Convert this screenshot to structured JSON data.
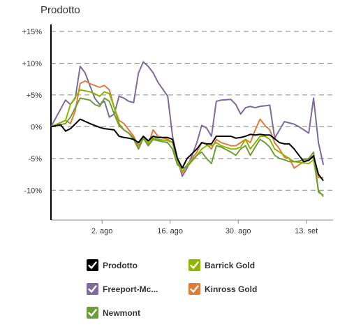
{
  "title": "Prodotto",
  "legend": [
    {
      "label": "Prodotto",
      "color": "#000000"
    },
    {
      "label": "Barrick Gold",
      "color": "#8db600"
    },
    {
      "label": "Freeport-Mc...",
      "color": "#7c6b9c"
    },
    {
      "label": "Kinross Gold",
      "color": "#e07b39"
    },
    {
      "label": "Newmont",
      "color": "#6e9c3a"
    }
  ],
  "chart_data": {
    "type": "line",
    "title": "Prodotto",
    "xlabel": "",
    "ylabel": "",
    "x_tick_labels": [
      "2. ago",
      "16. ago",
      "30. ago",
      "13. set"
    ],
    "y_tick_labels": [
      "+15%",
      "+10%",
      "+5%",
      "0%",
      "-5%",
      "-10%"
    ],
    "y_ticks": [
      15,
      10,
      5,
      0,
      -5,
      -10
    ],
    "ylim": [
      -14.7,
      15
    ],
    "x_range": [
      0,
      58
    ],
    "x_tick_positions": [
      10.5,
      24.5,
      38.5,
      52.5
    ],
    "grid": true,
    "series": [
      {
        "name": "Prodotto",
        "color": "#000000",
        "values": [
          [
            0,
            0
          ],
          [
            2,
            0.3
          ],
          [
            3,
            -0.7
          ],
          [
            4,
            -0.3
          ],
          [
            6,
            1.2
          ],
          [
            8,
            0.5
          ],
          [
            10,
            -0.1
          ],
          [
            11,
            -0.3
          ],
          [
            12,
            -0.4
          ],
          [
            13,
            -0.5
          ],
          [
            14,
            -1.5
          ],
          [
            15,
            -1.7
          ],
          [
            16,
            -1.8
          ],
          [
            17,
            -2.0
          ],
          [
            18,
            -2.5
          ],
          [
            19,
            -1.5
          ],
          [
            20,
            -2.2
          ],
          [
            21,
            -1.5
          ],
          [
            22,
            -1.7
          ],
          [
            24,
            -1.7
          ],
          [
            25,
            -2.0
          ],
          [
            26,
            -5.0
          ],
          [
            27,
            -6.5
          ],
          [
            28,
            -5.0
          ],
          [
            30,
            -3.5
          ],
          [
            31,
            -2.5
          ],
          [
            32,
            -2.7
          ],
          [
            33,
            -2.7
          ],
          [
            34,
            -1.5
          ],
          [
            35,
            -1.5
          ],
          [
            37,
            -1.5
          ],
          [
            38,
            -1.8
          ],
          [
            39,
            -1.7
          ],
          [
            40,
            -1.5
          ],
          [
            41,
            -1.2
          ],
          [
            42,
            -1.3
          ],
          [
            43,
            -1.2
          ],
          [
            44,
            -1.3
          ],
          [
            45,
            -1.3
          ],
          [
            46,
            -1.9
          ],
          [
            47,
            -2.5
          ],
          [
            48,
            -2.7
          ],
          [
            49,
            -2.7
          ],
          [
            50,
            -3.5
          ],
          [
            51,
            -4.5
          ],
          [
            52,
            -5.5
          ],
          [
            53,
            -5.3
          ],
          [
            54,
            -4.6
          ],
          [
            55,
            -7.5
          ],
          [
            56,
            -8.5
          ]
        ]
      },
      {
        "name": "Barrick Gold",
        "color": "#8db600",
        "values": [
          [
            0,
            0
          ],
          [
            3,
            1.0
          ],
          [
            4,
            3.5
          ],
          [
            6,
            5.8
          ],
          [
            8,
            5.5
          ],
          [
            9,
            5.2
          ],
          [
            10,
            4.8
          ],
          [
            11,
            5.5
          ],
          [
            12,
            5.2
          ],
          [
            13,
            3.0
          ],
          [
            14,
            0.5
          ],
          [
            15,
            -0.5
          ],
          [
            16,
            -1.0
          ],
          [
            17,
            -2.0
          ],
          [
            18,
            -3.5
          ],
          [
            19,
            -1.5
          ],
          [
            20,
            -2.5
          ],
          [
            21,
            -1.8
          ],
          [
            22,
            -2.0
          ],
          [
            24,
            -2.2
          ],
          [
            25,
            -2.5
          ],
          [
            26,
            -5.5
          ],
          [
            27,
            -7.0
          ],
          [
            28,
            -6.0
          ],
          [
            30,
            -4.5
          ],
          [
            31,
            -3.5
          ],
          [
            32,
            -3.0
          ],
          [
            33,
            -3.0
          ],
          [
            34,
            -2.5
          ],
          [
            35,
            -3.0
          ],
          [
            37,
            -3.5
          ],
          [
            38,
            -3.5
          ],
          [
            39,
            -3.2
          ],
          [
            40,
            -2.0
          ],
          [
            41,
            -3.5
          ],
          [
            42,
            -2.5
          ],
          [
            43,
            -1.5
          ],
          [
            44,
            -1.5
          ],
          [
            45,
            -2.0
          ],
          [
            46,
            -3.5
          ],
          [
            47,
            -4.0
          ],
          [
            48,
            -4.5
          ],
          [
            49,
            -5.0
          ],
          [
            50,
            -5.5
          ],
          [
            51,
            -5.6
          ],
          [
            52,
            -5.7
          ],
          [
            53,
            -5.8
          ],
          [
            54,
            -5.2
          ],
          [
            55,
            -10.0
          ],
          [
            56,
            -11.0
          ]
        ]
      },
      {
        "name": "Freeport-Mc...",
        "color": "#7c6b9c",
        "values": [
          [
            0,
            0
          ],
          [
            3,
            4.2
          ],
          [
            4,
            3.5
          ],
          [
            5,
            4.5
          ],
          [
            6,
            9.5
          ],
          [
            7,
            8.5
          ],
          [
            8,
            6.5
          ],
          [
            9,
            4.5
          ],
          [
            10,
            3.5
          ],
          [
            11,
            4.0
          ],
          [
            12,
            1.5
          ],
          [
            13,
            2.0
          ],
          [
            14,
            4.8
          ],
          [
            15,
            4.5
          ],
          [
            16,
            4.0
          ],
          [
            17,
            3.8
          ],
          [
            18,
            8.5
          ],
          [
            19,
            10.2
          ],
          [
            20,
            9.5
          ],
          [
            21,
            8.5
          ],
          [
            22,
            7.0
          ],
          [
            24,
            4.8
          ],
          [
            25,
            -1.5
          ],
          [
            26,
            -5.0
          ],
          [
            27,
            -7.8
          ],
          [
            28,
            -6.5
          ],
          [
            30,
            -2.5
          ],
          [
            31,
            0.2
          ],
          [
            32,
            -0.2
          ],
          [
            33,
            -1.5
          ],
          [
            34,
            4.0
          ],
          [
            35,
            4.2
          ],
          [
            37,
            4.3
          ],
          [
            38,
            3.5
          ],
          [
            39,
            2.0
          ],
          [
            40,
            3.0
          ],
          [
            41,
            3.2
          ],
          [
            42,
            3.0
          ],
          [
            43,
            3.2
          ],
          [
            44,
            3.3
          ],
          [
            45,
            3.4
          ],
          [
            46,
            -1.8
          ],
          [
            47,
            -0.5
          ],
          [
            48,
            0.8
          ],
          [
            49,
            0.6
          ],
          [
            50,
            0.4
          ],
          [
            51,
            0.0
          ],
          [
            52,
            -0.5
          ],
          [
            53,
            -1.0
          ],
          [
            54,
            4.5
          ],
          [
            55,
            -2.5
          ],
          [
            56,
            -6.0
          ]
        ]
      },
      {
        "name": "Kinross Gold",
        "color": "#e07b39",
        "values": [
          [
            0,
            0
          ],
          [
            3,
            1.0
          ],
          [
            4,
            0.5
          ],
          [
            5,
            2.5
          ],
          [
            6,
            6.8
          ],
          [
            7,
            7.2
          ],
          [
            8,
            6.8
          ],
          [
            9,
            6.5
          ],
          [
            10,
            6.2
          ],
          [
            11,
            6.5
          ],
          [
            12,
            5.8
          ],
          [
            13,
            3.0
          ],
          [
            14,
            1.0
          ],
          [
            15,
            0.5
          ],
          [
            16,
            -0.5
          ],
          [
            17,
            -1.5
          ],
          [
            18,
            -3.0
          ],
          [
            19,
            -1.5
          ],
          [
            20,
            -2.8
          ],
          [
            21,
            -0.5
          ],
          [
            22,
            -1.5
          ],
          [
            24,
            -2.0
          ],
          [
            25,
            -2.5
          ],
          [
            26,
            -5.5
          ],
          [
            27,
            -7.3
          ],
          [
            28,
            -6.0
          ],
          [
            30,
            -4.0
          ],
          [
            31,
            -2.5
          ],
          [
            32,
            -2.8
          ],
          [
            33,
            -3.5
          ],
          [
            34,
            -2.0
          ],
          [
            35,
            -2.5
          ],
          [
            37,
            -3.0
          ],
          [
            38,
            -3.0
          ],
          [
            39,
            -2.5
          ],
          [
            40,
            -2.0
          ],
          [
            41,
            -2.5
          ],
          [
            42,
            -0.5
          ],
          [
            43,
            1.2
          ],
          [
            44,
            0.2
          ],
          [
            45,
            -0.5
          ],
          [
            46,
            -2.5
          ],
          [
            47,
            -3.5
          ],
          [
            48,
            -4.8
          ],
          [
            49,
            -5.0
          ],
          [
            50,
            -6.5
          ],
          [
            51,
            -6.0
          ],
          [
            52,
            -5.5
          ],
          [
            53,
            -5.2
          ],
          [
            54,
            -4.5
          ],
          [
            55,
            -8.0
          ],
          [
            56,
            -8.0
          ]
        ]
      },
      {
        "name": "Newmont",
        "color": "#6e9c3a",
        "values": [
          [
            0,
            0
          ],
          [
            3,
            0.5
          ],
          [
            4,
            1.5
          ],
          [
            6,
            4.5
          ],
          [
            8,
            4.2
          ],
          [
            9,
            3.5
          ],
          [
            10,
            3.2
          ],
          [
            11,
            4.5
          ],
          [
            12,
            4.0
          ],
          [
            13,
            2.0
          ],
          [
            14,
            0.2
          ],
          [
            15,
            -0.5
          ],
          [
            16,
            -1.0
          ],
          [
            17,
            -1.8
          ],
          [
            18,
            -3.5
          ],
          [
            19,
            -1.8
          ],
          [
            20,
            -3.0
          ],
          [
            21,
            -2.0
          ],
          [
            22,
            -2.2
          ],
          [
            24,
            -2.5
          ],
          [
            25,
            -3.5
          ],
          [
            26,
            -6.0
          ],
          [
            27,
            -6.5
          ],
          [
            28,
            -6.3
          ],
          [
            30,
            -4.5
          ],
          [
            31,
            -4.0
          ],
          [
            32,
            -5.0
          ],
          [
            33,
            -5.8
          ],
          [
            34,
            -3.0
          ],
          [
            35,
            -3.2
          ],
          [
            37,
            -4.0
          ],
          [
            38,
            -4.5
          ],
          [
            39,
            -3.5
          ],
          [
            40,
            -3.0
          ],
          [
            41,
            -4.5
          ],
          [
            42,
            -3.2
          ],
          [
            43,
            -2.0
          ],
          [
            44,
            -2.5
          ],
          [
            45,
            -3.2
          ],
          [
            46,
            -4.5
          ],
          [
            47,
            -5.0
          ],
          [
            48,
            -5.2
          ],
          [
            49,
            -5.5
          ],
          [
            50,
            -5.5
          ],
          [
            51,
            -5.4
          ],
          [
            52,
            -5.2
          ],
          [
            53,
            -5.0
          ],
          [
            54,
            -4.0
          ],
          [
            55,
            -10.3
          ],
          [
            56,
            -10.8
          ]
        ]
      }
    ]
  }
}
